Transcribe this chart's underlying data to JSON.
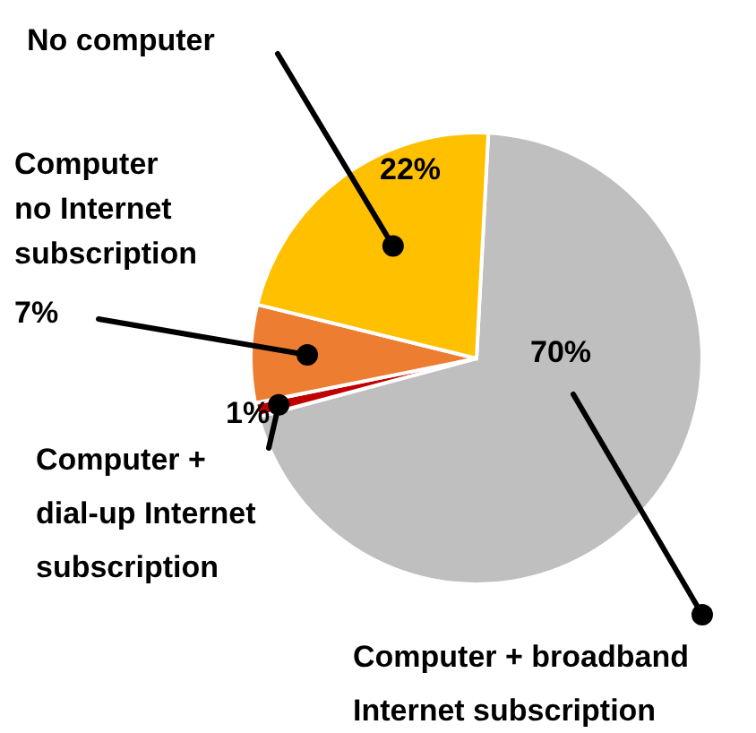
{
  "chart_data": {
    "type": "pie",
    "categories": [
      "Computer + broadband\nInternet subscription",
      "Computer +\ndial-up Internet\nsubscription",
      "Computer\nno Internet\nsubscription",
      "No computer"
    ],
    "values": [
      70,
      1,
      7,
      22
    ],
    "colors": [
      "#bfbfbf",
      "#c00000",
      "#ed7d31",
      "#ffc000"
    ],
    "value_labels": [
      "70%",
      "1%",
      "7%",
      "22%"
    ],
    "legend": false
  }
}
